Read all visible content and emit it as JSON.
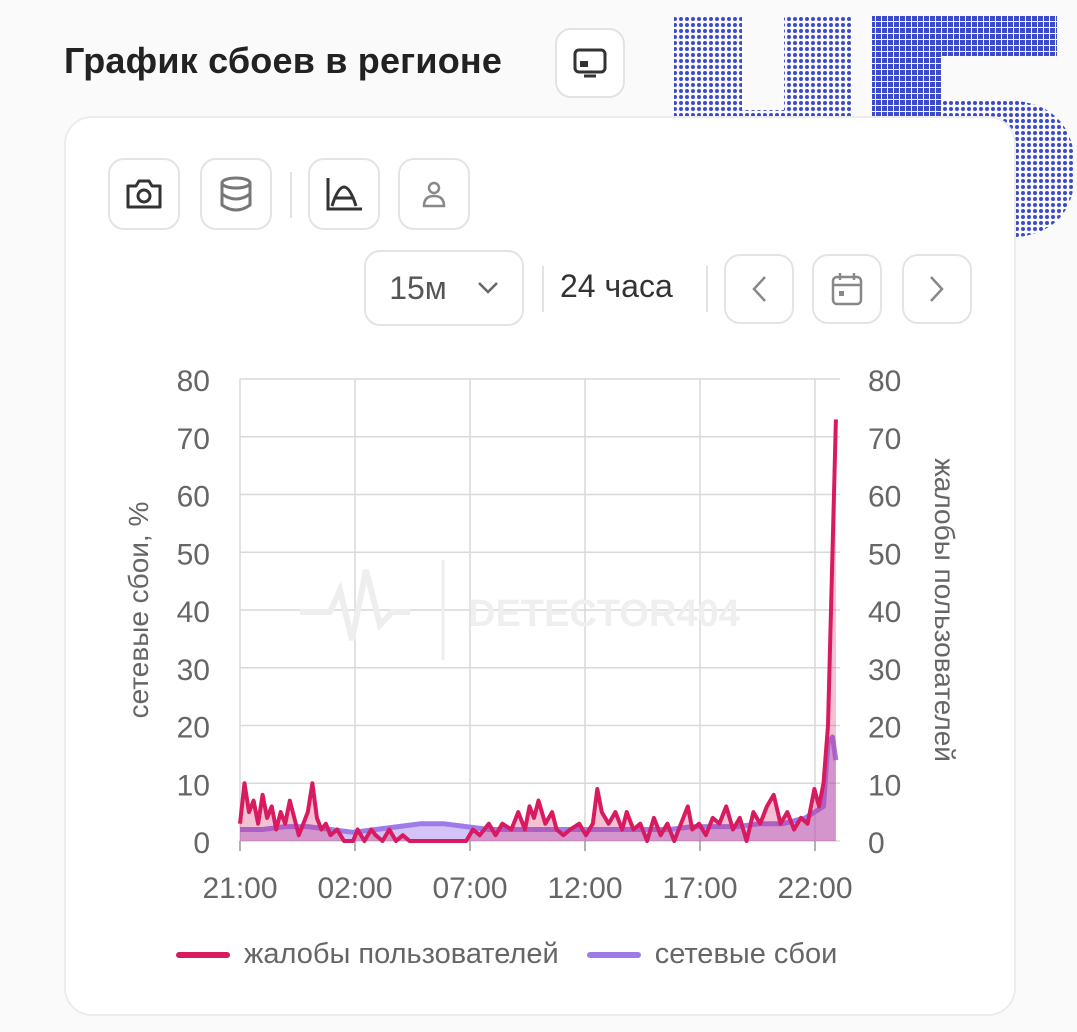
{
  "header": {
    "title": "График сбоев в регионе",
    "view_icon": "monitor-icon"
  },
  "toolbar": {
    "icons": [
      "camera-icon",
      "database-icon",
      "curve-icon",
      "user-icon"
    ],
    "period": "15м",
    "range": "24 часа",
    "nav_icons": [
      "chevron-left-icon",
      "calendar-icon",
      "chevron-right-icon"
    ]
  },
  "colors": {
    "complaints": "#d81b60",
    "outages": "#9d7bea",
    "grid": "#d9d9d9",
    "logo": "#3d4bc8"
  },
  "chart_data": {
    "type": "line",
    "watermark": "DETECTOR404",
    "x_ticks": [
      "21:00",
      "02:00",
      "07:00",
      "12:00",
      "17:00",
      "22:00"
    ],
    "y_left_label": "сетевые сбои, %",
    "y_right_label": "жалобы пользователей",
    "y_left_ticks": [
      0,
      10,
      20,
      30,
      40,
      50,
      60,
      70,
      80
    ],
    "y_right_ticks": [
      0,
      10,
      20,
      30,
      40,
      50,
      60,
      70,
      80
    ],
    "ylim": [
      0,
      80
    ],
    "x_hours_range": [
      0,
      26
    ],
    "legend_position": "bottom",
    "series": [
      {
        "name": "жалобы пользователей",
        "axis": "right",
        "points": [
          [
            0,
            3
          ],
          [
            0.2,
            10
          ],
          [
            0.4,
            5
          ],
          [
            0.6,
            7
          ],
          [
            0.8,
            3
          ],
          [
            1,
            8
          ],
          [
            1.2,
            4
          ],
          [
            1.4,
            6
          ],
          [
            1.6,
            2
          ],
          [
            1.8,
            5
          ],
          [
            2,
            3
          ],
          [
            2.2,
            7
          ],
          [
            2.4,
            4
          ],
          [
            2.6,
            1
          ],
          [
            2.8,
            3
          ],
          [
            3,
            5
          ],
          [
            3.2,
            10
          ],
          [
            3.4,
            4
          ],
          [
            3.6,
            2
          ],
          [
            3.8,
            3
          ],
          [
            4,
            1
          ],
          [
            4.3,
            2
          ],
          [
            4.6,
            0
          ],
          [
            5,
            0
          ],
          [
            5.2,
            2
          ],
          [
            5.5,
            0
          ],
          [
            5.8,
            2
          ],
          [
            6,
            1
          ],
          [
            6.3,
            0
          ],
          [
            6.6,
            2
          ],
          [
            6.9,
            0
          ],
          [
            7.2,
            1
          ],
          [
            7.5,
            0
          ],
          [
            8,
            0
          ],
          [
            8.5,
            0
          ],
          [
            9,
            0
          ],
          [
            9.5,
            0
          ],
          [
            10,
            0
          ],
          [
            10.3,
            2
          ],
          [
            10.6,
            1
          ],
          [
            11,
            3
          ],
          [
            11.3,
            1
          ],
          [
            11.6,
            3
          ],
          [
            12,
            2
          ],
          [
            12.3,
            5
          ],
          [
            12.6,
            2
          ],
          [
            12.8,
            6
          ],
          [
            13,
            4
          ],
          [
            13.2,
            7
          ],
          [
            13.5,
            3
          ],
          [
            13.8,
            5
          ],
          [
            14,
            2
          ],
          [
            14.3,
            1
          ],
          [
            14.6,
            2
          ],
          [
            15,
            3
          ],
          [
            15.3,
            1
          ],
          [
            15.6,
            3
          ],
          [
            15.8,
            9
          ],
          [
            16,
            5
          ],
          [
            16.3,
            3
          ],
          [
            16.6,
            5
          ],
          [
            16.9,
            2
          ],
          [
            17.1,
            5
          ],
          [
            17.4,
            2
          ],
          [
            17.7,
            3
          ],
          [
            18,
            0
          ],
          [
            18.3,
            4
          ],
          [
            18.6,
            1
          ],
          [
            18.9,
            3
          ],
          [
            19.2,
            0
          ],
          [
            19.5,
            3
          ],
          [
            19.8,
            6
          ],
          [
            20,
            2
          ],
          [
            20.3,
            3
          ],
          [
            20.6,
            1
          ],
          [
            20.9,
            4
          ],
          [
            21.2,
            3
          ],
          [
            21.5,
            6
          ],
          [
            21.8,
            2
          ],
          [
            22.1,
            4
          ],
          [
            22.4,
            0
          ],
          [
            22.7,
            5
          ],
          [
            23,
            3
          ],
          [
            23.3,
            6
          ],
          [
            23.6,
            8
          ],
          [
            23.9,
            3
          ],
          [
            24.2,
            5
          ],
          [
            24.5,
            2
          ],
          [
            24.8,
            4
          ],
          [
            25.1,
            3
          ],
          [
            25.4,
            9
          ],
          [
            25.6,
            6
          ],
          [
            25.8,
            10
          ],
          [
            26,
            20
          ],
          [
            26.2,
            50
          ],
          [
            26.35,
            73
          ]
        ]
      },
      {
        "name": "сетевые сбои",
        "axis": "left",
        "points": [
          [
            0,
            2
          ],
          [
            1,
            2
          ],
          [
            2,
            2.5
          ],
          [
            3,
            2.5
          ],
          [
            4,
            2
          ],
          [
            5,
            1.5
          ],
          [
            6,
            2
          ],
          [
            7,
            2.5
          ],
          [
            8,
            3
          ],
          [
            9,
            3
          ],
          [
            10,
            2.5
          ],
          [
            11,
            2
          ],
          [
            12,
            2
          ],
          [
            13,
            2
          ],
          [
            14,
            2
          ],
          [
            15,
            2
          ],
          [
            16,
            2
          ],
          [
            17,
            2
          ],
          [
            18,
            2
          ],
          [
            19,
            2
          ],
          [
            20,
            2.5
          ],
          [
            21,
            2.5
          ],
          [
            22,
            2.5
          ],
          [
            23,
            3
          ],
          [
            24,
            3
          ],
          [
            25,
            4
          ],
          [
            25.8,
            6
          ],
          [
            26,
            17
          ],
          [
            26.2,
            18
          ],
          [
            26.35,
            14
          ]
        ]
      }
    ]
  }
}
